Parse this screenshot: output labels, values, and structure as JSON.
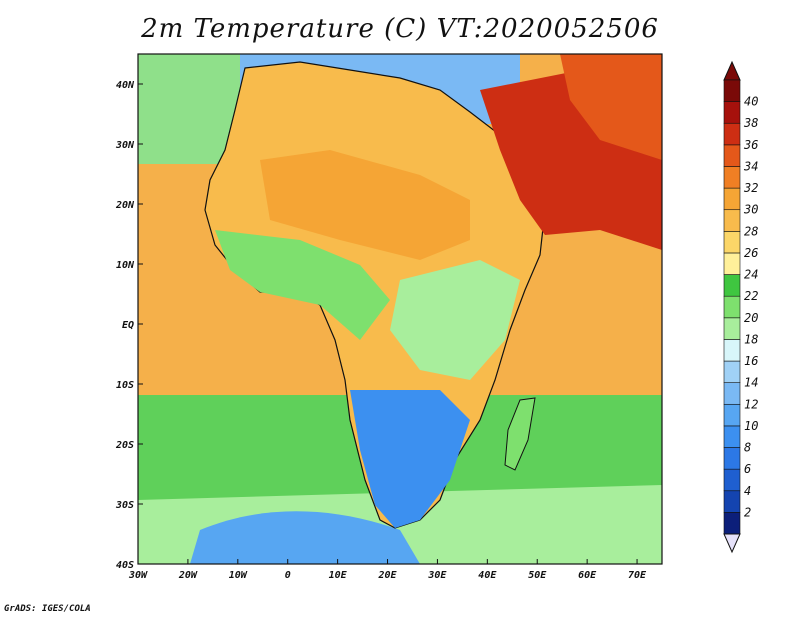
{
  "title": "2m Temperature (C) VT:2020052506",
  "credit": "GrADS: IGES/COLA",
  "map": {
    "lon_range": [
      -30,
      75
    ],
    "lat_range": [
      -40,
      45
    ],
    "lon_ticks": [
      {
        "value": -30,
        "label": "30W"
      },
      {
        "value": -20,
        "label": "20W"
      },
      {
        "value": -10,
        "label": "10W"
      },
      {
        "value": 0,
        "label": "0"
      },
      {
        "value": 10,
        "label": "10E"
      },
      {
        "value": 20,
        "label": "20E"
      },
      {
        "value": 30,
        "label": "30E"
      },
      {
        "value": 40,
        "label": "40E"
      },
      {
        "value": 50,
        "label": "50E"
      },
      {
        "value": 60,
        "label": "60E"
      },
      {
        "value": 70,
        "label": "70E"
      }
    ],
    "lat_ticks": [
      {
        "value": 40,
        "label": "40N"
      },
      {
        "value": 30,
        "label": "30N"
      },
      {
        "value": 20,
        "label": "20N"
      },
      {
        "value": 10,
        "label": "10N"
      },
      {
        "value": 0,
        "label": "EQ"
      },
      {
        "value": -10,
        "label": "10S"
      },
      {
        "value": -20,
        "label": "20S"
      },
      {
        "value": -30,
        "label": "30S"
      },
      {
        "value": -40,
        "label": "40S"
      }
    ],
    "ocean_color": "#f5b04a"
  },
  "colorbar": {
    "levels": [
      "2",
      "4",
      "6",
      "8",
      "10",
      "12",
      "14",
      "16",
      "18",
      "20",
      "22",
      "24",
      "26",
      "28",
      "30",
      "32",
      "34",
      "36",
      "38",
      "40"
    ],
    "colors": [
      "#0c1f7a",
      "#1444b0",
      "#1f5fd0",
      "#2c78e6",
      "#3c90f0",
      "#57a6f2",
      "#7ab9f4",
      "#a0d1f6",
      "#d8f6fa",
      "#a8ee9c",
      "#7ee06e",
      "#3fc640",
      "#fff09a",
      "#fbd668",
      "#f8bb4c",
      "#f5a535",
      "#f07f24",
      "#e4581a",
      "#cd2e13",
      "#a6110c",
      "#7a0a08"
    ],
    "under_color": "#e6e2fa"
  }
}
